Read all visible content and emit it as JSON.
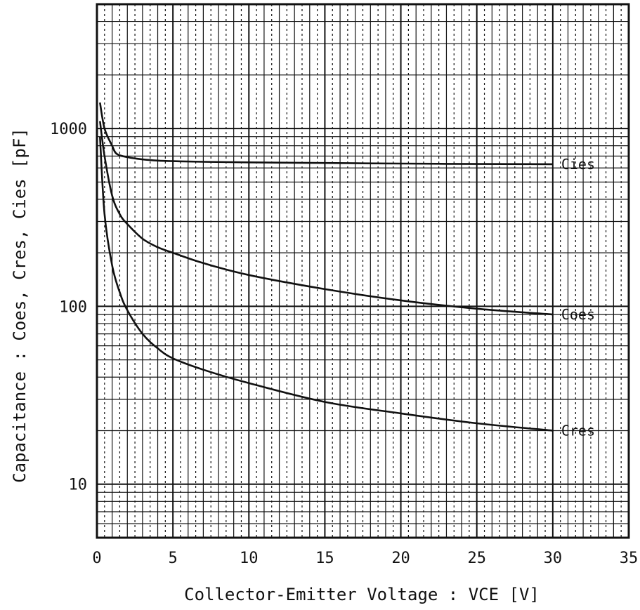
{
  "chart_data": {
    "type": "line",
    "title": "",
    "xlabel": "Collector-Emitter Voltage  :  VCE  [V]",
    "ylabel": "Capacitance  :  Coes, Cres, Cies  [pF]",
    "xlim": [
      0,
      35
    ],
    "ylim": [
      5,
      5000
    ],
    "yscale": "log",
    "grid": true,
    "x_ticks": [
      "0",
      "5",
      "10",
      "15",
      "20",
      "25",
      "30",
      "35"
    ],
    "y_ticks": [
      "10",
      "100",
      "1000"
    ],
    "series": [
      {
        "name": "Cies",
        "x": [
          0.2,
          0.5,
          1.0,
          1.3,
          2,
          3,
          4,
          5,
          7,
          10,
          15,
          20,
          25,
          30
        ],
        "y": [
          1400,
          1000,
          800,
          720,
          690,
          670,
          660,
          655,
          650,
          645,
          640,
          635,
          632,
          630
        ]
      },
      {
        "name": "Coes",
        "x": [
          0.2,
          0.5,
          1.0,
          1.5,
          2,
          3,
          4,
          5,
          7,
          10,
          15,
          20,
          25,
          30
        ],
        "y": [
          1100,
          700,
          420,
          330,
          290,
          240,
          215,
          200,
          175,
          150,
          125,
          108,
          97,
          90
        ]
      },
      {
        "name": "Cres",
        "x": [
          0.2,
          0.5,
          1.0,
          1.5,
          2,
          3,
          4,
          5,
          7,
          10,
          15,
          20,
          25,
          30
        ],
        "y": [
          900,
          330,
          170,
          120,
          95,
          70,
          58,
          51,
          44,
          37,
          29,
          25,
          22,
          20
        ]
      }
    ]
  }
}
